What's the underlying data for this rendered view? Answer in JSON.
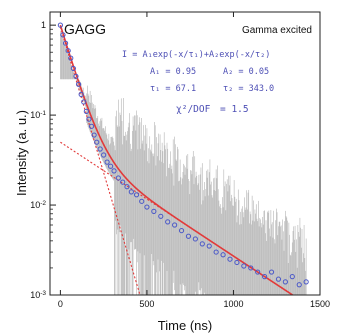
{
  "chart_data": {
    "type": "scatter",
    "sample_label": "GAGG",
    "corner_label": "Gamma excited",
    "xlabel": "Time (ns)",
    "ylabel": "Intensity (a. u.)",
    "xlim": [
      -60,
      1500
    ],
    "ylim": [
      0.001,
      1.4
    ],
    "yscale": "log",
    "x_ticks": [
      "0",
      "500",
      "1000",
      "1500"
    ],
    "x_tick_values": [
      0,
      500,
      1000,
      1500
    ],
    "y_ticks": [
      {
        "base": "1",
        "exp": ""
      },
      {
        "base": "10",
        "exp": "-1"
      },
      {
        "base": "10",
        "exp": "-2"
      },
      {
        "base": "10",
        "exp": "-3"
      }
    ],
    "y_tick_values": [
      1,
      0.1,
      0.01,
      0.001
    ],
    "fit": {
      "A1": 0.95,
      "A2": 0.05,
      "tau1": 67.1,
      "tau2": 343.0
    },
    "equation": {
      "formula": "I = A₁exp(-x/τ₁)+A₂exp(-x/τ₂)",
      "a1": "A₁ = 0.95",
      "a2": "A₂ = 0.05",
      "t1": "τ₁ = 67.1",
      "t2": "τ₂ = 343.0",
      "chi_label": "χ²/DOF",
      "chi_value": "= 1.5"
    },
    "series": [
      {
        "kind": "fit-total",
        "color": "#e23a3a"
      },
      {
        "kind": "fit-component-fast",
        "color": "#e23a3a"
      },
      {
        "kind": "fit-component-slow",
        "color": "#e23a3a"
      },
      {
        "kind": "data-points",
        "color": "#4a58c8",
        "x": [
          0,
          15,
          30,
          45,
          60,
          75,
          90,
          105,
          120,
          135,
          150,
          165,
          180,
          195,
          210,
          230,
          250,
          270,
          290,
          310,
          335,
          360,
          385,
          410,
          440,
          470,
          500,
          540,
          580,
          620,
          660,
          700,
          740,
          780,
          820,
          860,
          900,
          940,
          980,
          1020,
          1060,
          1100,
          1140,
          1180,
          1220,
          1260,
          1300,
          1340,
          1380,
          1420
        ],
        "y": [
          1.0,
          0.78,
          0.63,
          0.52,
          0.43,
          0.33,
          0.27,
          0.22,
          0.17,
          0.14,
          0.11,
          0.09,
          0.075,
          0.06,
          0.05,
          0.042,
          0.036,
          0.03,
          0.027,
          0.024,
          0.02,
          0.018,
          0.016,
          0.014,
          0.013,
          0.011,
          0.0095,
          0.0085,
          0.0075,
          0.0065,
          0.006,
          0.0052,
          0.0045,
          0.0042,
          0.0037,
          0.0035,
          0.003,
          0.0028,
          0.0025,
          0.0023,
          0.0021,
          0.002,
          0.0018,
          0.0016,
          0.0018,
          0.0015,
          0.0014,
          0.0016,
          0.0013,
          0.0014
        ]
      }
    ]
  }
}
